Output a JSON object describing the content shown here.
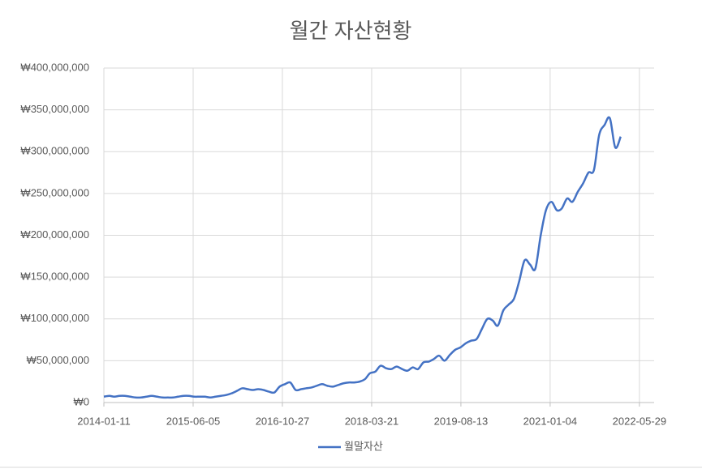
{
  "chart_data": {
    "type": "line",
    "title": "월간 자산현황",
    "x": [
      "2014-01-11",
      "2014-02-11",
      "2014-03-11",
      "2014-04-11",
      "2014-05-11",
      "2014-06-11",
      "2014-07-11",
      "2014-08-11",
      "2014-09-11",
      "2014-10-11",
      "2014-11-11",
      "2014-12-11",
      "2015-01-11",
      "2015-02-11",
      "2015-03-11",
      "2015-04-11",
      "2015-05-11",
      "2015-06-11",
      "2015-07-11",
      "2015-08-11",
      "2015-09-11",
      "2015-10-11",
      "2015-11-11",
      "2015-12-11",
      "2016-01-11",
      "2016-02-11",
      "2016-03-11",
      "2016-04-11",
      "2016-05-11",
      "2016-06-11",
      "2016-07-11",
      "2016-08-11",
      "2016-09-11",
      "2016-10-11",
      "2016-11-11",
      "2016-12-11",
      "2017-01-11",
      "2017-02-11",
      "2017-03-11",
      "2017-04-11",
      "2017-05-11",
      "2017-06-11",
      "2017-07-11",
      "2017-08-11",
      "2017-09-11",
      "2017-10-11",
      "2017-11-11",
      "2017-12-11",
      "2018-01-11",
      "2018-02-11",
      "2018-03-11",
      "2018-04-11",
      "2018-05-11",
      "2018-06-11",
      "2018-07-11",
      "2018-08-11",
      "2018-09-11",
      "2018-10-11",
      "2018-11-11",
      "2018-12-11",
      "2019-01-11",
      "2019-02-11",
      "2019-03-11",
      "2019-04-11",
      "2019-05-11",
      "2019-06-11",
      "2019-07-11",
      "2019-08-11",
      "2019-09-11",
      "2019-10-11",
      "2019-11-11",
      "2019-12-11",
      "2020-01-11",
      "2020-02-11",
      "2020-03-11",
      "2020-04-11",
      "2020-05-11",
      "2020-06-11",
      "2020-07-11",
      "2020-08-11",
      "2020-09-11",
      "2020-10-11",
      "2020-11-11",
      "2020-12-11",
      "2021-01-11",
      "2021-02-11",
      "2021-03-11",
      "2021-04-11",
      "2021-05-11",
      "2021-06-11",
      "2021-07-11",
      "2021-08-11",
      "2021-09-11",
      "2021-10-11",
      "2021-11-11",
      "2021-12-11",
      "2022-01-11",
      "2022-02-11"
    ],
    "series": [
      {
        "name": "월말자산",
        "color": "#4472c4",
        "values": [
          7000000,
          8000000,
          7000000,
          8000000,
          8000000,
          7000000,
          6000000,
          6000000,
          7000000,
          8000000,
          7000000,
          6000000,
          6000000,
          6000000,
          7000000,
          8000000,
          8000000,
          7000000,
          7000000,
          7000000,
          6000000,
          7000000,
          8000000,
          9000000,
          11000000,
          14000000,
          17000000,
          16000000,
          15000000,
          16000000,
          15000000,
          13000000,
          12000000,
          19000000,
          22000000,
          24000000,
          15000000,
          16000000,
          17000000,
          18000000,
          20000000,
          22000000,
          20000000,
          19000000,
          21000000,
          23000000,
          24000000,
          24000000,
          25000000,
          28000000,
          35000000,
          37000000,
          44000000,
          41000000,
          40000000,
          43000000,
          40000000,
          38000000,
          42000000,
          40000000,
          48000000,
          49000000,
          52000000,
          56000000,
          50000000,
          57000000,
          63000000,
          66000000,
          71000000,
          74000000,
          76000000,
          88000000,
          100000000,
          98000000,
          92000000,
          110000000,
          117000000,
          124000000,
          145000000,
          170000000,
          165000000,
          160000000,
          200000000,
          230000000,
          240000000,
          230000000,
          232000000,
          244000000,
          240000000,
          252000000,
          262000000,
          275000000,
          278000000,
          320000000,
          332000000,
          340000000,
          305000000,
          318000000
        ]
      }
    ],
    "xlim": [
      "2014-01-11",
      "2022-08-21"
    ],
    "xticks": [
      "2014-01-11",
      "2015-06-05",
      "2016-10-27",
      "2018-03-21",
      "2019-08-13",
      "2021-01-04",
      "2022-05-29"
    ],
    "ylim": [
      0,
      400000000
    ],
    "yticks": [
      {
        "value": 0,
        "label": "₩0"
      },
      {
        "value": 50000000,
        "label": "₩50,000,000"
      },
      {
        "value": 100000000,
        "label": "₩100,000,000"
      },
      {
        "value": 150000000,
        "label": "₩150,000,000"
      },
      {
        "value": 200000000,
        "label": "₩200,000,000"
      },
      {
        "value": 250000000,
        "label": "₩250,000,000"
      },
      {
        "value": 300000000,
        "label": "₩300,000,000"
      },
      {
        "value": 350000000,
        "label": "₩350,000,000"
      },
      {
        "value": 400000000,
        "label": "₩400,000,000"
      }
    ],
    "grid": true,
    "legend": "bottom"
  }
}
